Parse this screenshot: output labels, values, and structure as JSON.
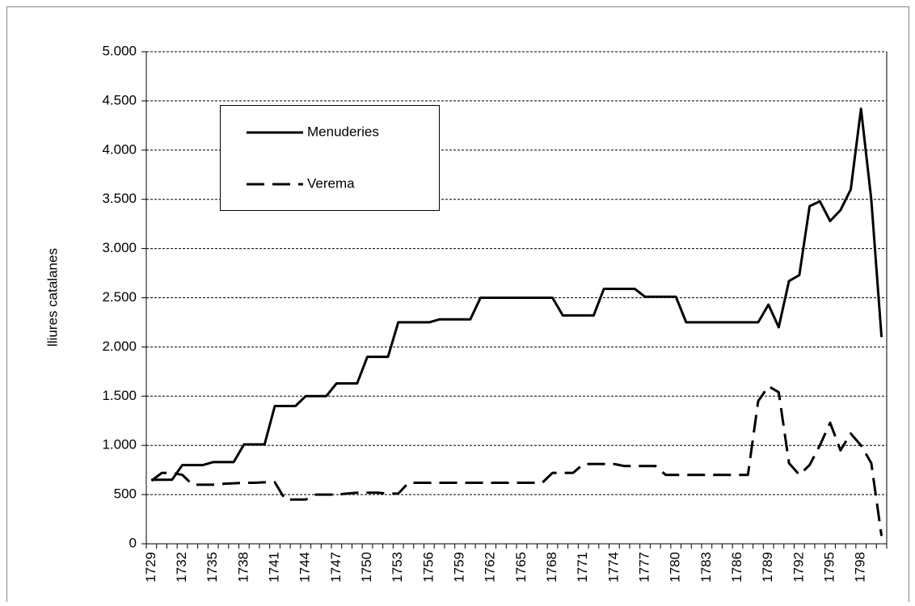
{
  "chart_data": {
    "type": "line",
    "y_label": "lliures catalanes",
    "categories": [
      "1729",
      null,
      null,
      "1732",
      null,
      null,
      "1735",
      null,
      null,
      "1738",
      null,
      null,
      "1741",
      null,
      null,
      "1744",
      null,
      null,
      "1747",
      null,
      null,
      "1750",
      null,
      null,
      "1753",
      null,
      null,
      "1756",
      null,
      null,
      "1759",
      null,
      null,
      "1762",
      null,
      null,
      "1765",
      null,
      null,
      "1768",
      null,
      null,
      "1771",
      null,
      null,
      "1774",
      null,
      null,
      "1777",
      null,
      null,
      "1780",
      null,
      null,
      "1783",
      null,
      null,
      "1786",
      null,
      null,
      "1789",
      null,
      null,
      "1792",
      null,
      null,
      "1795",
      null,
      null,
      "1798",
      null,
      null
    ],
    "series": [
      {
        "name": "Menuderies",
        "color": "#000000",
        "dash": "solid",
        "values": [
          650,
          650,
          650,
          800,
          800,
          800,
          830,
          830,
          830,
          1010,
          1010,
          1010,
          1400,
          1400,
          1400,
          1500,
          1500,
          1500,
          1630,
          1630,
          1630,
          1900,
          1900,
          1900,
          2250,
          2250,
          2250,
          2250,
          2280,
          2280,
          2280,
          2280,
          2500,
          2500,
          2500,
          2500,
          2500,
          2500,
          2500,
          2500,
          2320,
          2320,
          2320,
          2320,
          2590,
          2590,
          2590,
          2590,
          2510,
          2510,
          2510,
          2510,
          2250,
          2250,
          2250,
          2250,
          2250,
          2250,
          2250,
          2250,
          2430,
          2200,
          2670,
          2730,
          3430,
          3480,
          3280,
          3390,
          3600,
          4420,
          3500,
          2100
        ]
      },
      {
        "name": "Verema",
        "color": "#000000",
        "dash": "dashed",
        "values": [
          640,
          720,
          720,
          700,
          600,
          600,
          600,
          610,
          615,
          620,
          620,
          625,
          625,
          450,
          450,
          450,
          500,
          500,
          500,
          510,
          520,
          520,
          520,
          510,
          510,
          620,
          620,
          620,
          620,
          620,
          620,
          620,
          620,
          620,
          620,
          620,
          620,
          620,
          620,
          720,
          720,
          720,
          810,
          810,
          810,
          810,
          790,
          790,
          790,
          790,
          700,
          700,
          700,
          700,
          700,
          700,
          700,
          700,
          700,
          1450,
          1600,
          1540,
          820,
          700,
          800,
          1000,
          1230,
          950,
          1120,
          1000,
          820,
          80
        ]
      }
    ],
    "ylim": [
      0,
      5000
    ],
    "yticks": [
      0,
      500,
      {
        "value": 1000,
        "label": "1.000"
      },
      {
        "value": 1500,
        "label": "1.500"
      },
      {
        "value": 2000,
        "label": "2.000"
      },
      {
        "value": 2500,
        "label": "2.500"
      },
      {
        "value": 3000,
        "label": "3.000"
      },
      {
        "value": 3500,
        "label": "3.500"
      },
      {
        "value": 4000,
        "label": "4.000"
      },
      {
        "value": 4500,
        "label": "4.500"
      },
      {
        "value": 5000,
        "label": "5.000"
      }
    ],
    "grid": true
  }
}
